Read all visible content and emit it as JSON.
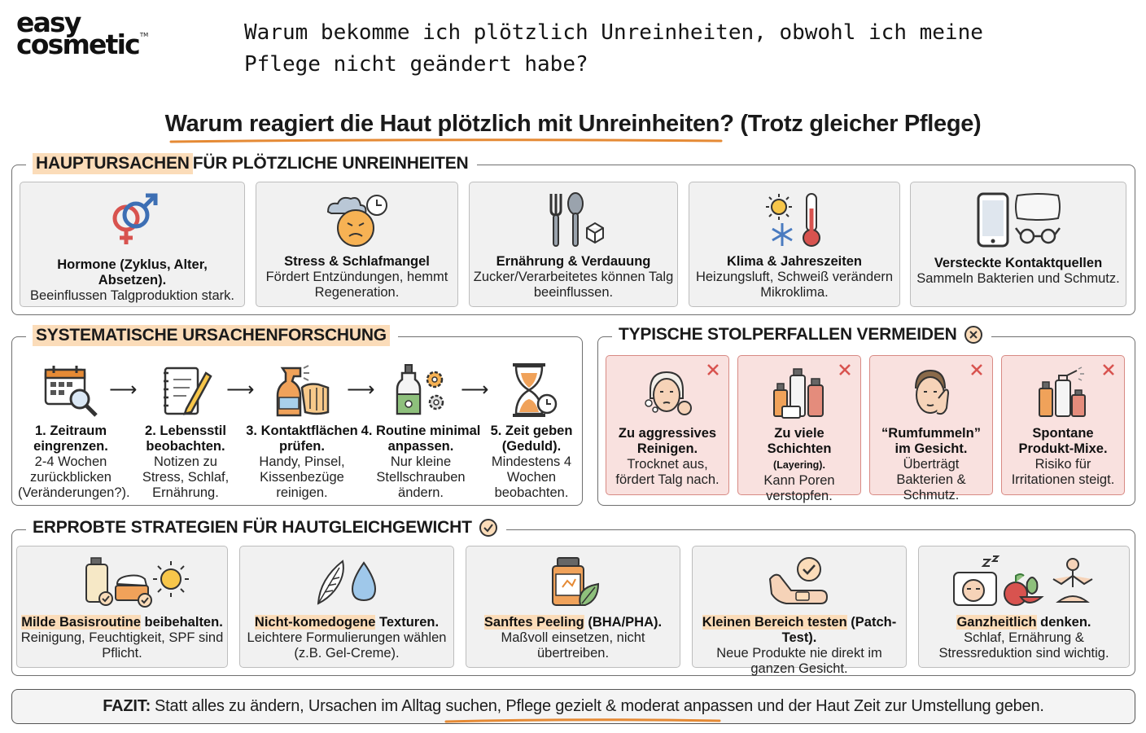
{
  "logo": {
    "line1": "easy",
    "line2": "cosmetic",
    "tm": "TM"
  },
  "title": "Warum bekomme ich plötzlich Unreinheiten, obwohl ich meine Pflege nicht geändert habe?",
  "subtitle": "Warum reagiert die Haut plötzlich mit Unreinheiten? (Trotz gleicher Pflege)",
  "colors": {
    "highlight": "#fbdcb9",
    "accent": "#e58a35",
    "red_card": "#f9e1df",
    "red_border": "#d88a84",
    "card_bg": "#f1f1f1"
  },
  "causes": {
    "label_hl": "HAUPTURSACHEN",
    "label_rest": " FÜR PLÖTZLICHE UNREINHEITEN",
    "items": [
      {
        "icon": "gender-symbols-icon",
        "title": "Hormone (Zyklus, Alter, Absetzen).",
        "text": "Beeinflussen Talgproduktion stark."
      },
      {
        "icon": "stressed-face-clock-icon",
        "title": "Stress & Schlafmangel",
        "text": "Fördert Entzündungen, hemmt Regeneration."
      },
      {
        "icon": "fork-spoon-sugar-icon",
        "title": "Ernährung & Verdauung",
        "text": "Zucker/Verarbeitetes können Talg beeinflussen."
      },
      {
        "icon": "sun-snowflake-thermometer-icon",
        "title": "Klima & Jahreszeiten",
        "text": "Heizungsluft, Schweiß verändern Mikroklima."
      },
      {
        "icon": "phone-pillow-glasses-icon",
        "title": "Versteckte Kontaktquellen",
        "text": "Sammeln Bakterien und Schmutz."
      }
    ]
  },
  "research": {
    "label": "SYSTEMATISCHE URSACHENFORSCHUNG",
    "arrow": "⟶",
    "steps": [
      {
        "icon": "calendar-magnifier-icon",
        "title": "1. Zeitraum eingrenzen.",
        "text": "2-4 Wochen zurückblicken (Veränderungen?)."
      },
      {
        "icon": "notepad-pencil-icon",
        "title": "2. Lebensstil beobachten.",
        "text": "Notizen zu Stress, Schlaf, Ernährung."
      },
      {
        "icon": "spray-cloth-icon",
        "title": "3. Kontaktflächen prüfen.",
        "text": "Handy, Pinsel, Kissenbezüge reinigen."
      },
      {
        "icon": "dropper-gears-icon",
        "title": "4. Routine minimal anpassen.",
        "text": "Nur kleine Stellschrauben ändern."
      },
      {
        "icon": "hourglass-clock-icon",
        "title": "5. Zeit geben (Geduld).",
        "text": "Mindestens 4 Wochen beobachten."
      }
    ]
  },
  "pitfalls": {
    "label": "TYPISCHE STOLPERFALLEN VERMEIDEN",
    "items": [
      {
        "icon": "face-scrubbing-icon",
        "title": "Zu aggressives Reinigen.",
        "small": "",
        "text": "Trocknet aus, fördert Talg nach."
      },
      {
        "icon": "many-bottles-icon",
        "title": "Zu viele Schichten",
        "small": "(Layering).",
        "text": "Kann Poren verstopfen."
      },
      {
        "icon": "face-touching-icon",
        "title": "“Rumfummeln” im Gesicht.",
        "small": "",
        "text": "Überträgt Bakterien & Schmutz."
      },
      {
        "icon": "product-mix-icon",
        "title": "Spontane Produkt-Mixe.",
        "small": "",
        "text": "Risiko für Irritationen steigt."
      }
    ]
  },
  "strategies": {
    "label": "ERPROBTE STRATEGIEN FÜR HAUTGLEICHGEWICHT",
    "items": [
      {
        "icon": "bottle-cream-sun-icon",
        "hl": "Milde Basisroutine",
        "rest": " beibehalten.",
        "text": "Reinigung, Feuchtigkeit, SPF sind Pflicht."
      },
      {
        "icon": "feather-drop-icon",
        "hl": "Nicht-komedogene",
        "rest": " Texturen.",
        "text": "Leichtere Formulierungen wählen (z.B. Gel-Creme)."
      },
      {
        "icon": "jar-leaf-icon",
        "hl": "Sanftes Peeling",
        "rest": " (BHA/PHA).",
        "text": "Maßvoll einsetzen, nicht übertreiben."
      },
      {
        "icon": "arm-patch-test-icon",
        "hl": "Kleinen Bereich testen",
        "rest": " (Patch-Test).",
        "text": "Neue Produkte nie direkt im ganzen Gesicht."
      },
      {
        "icon": "sleep-fruit-yoga-icon",
        "hl": "Ganzheitlich",
        "rest": " denken.",
        "text": "Schlaf, Ernährung & Stressreduktion sind wichtig."
      }
    ]
  },
  "fazit": {
    "label": "FAZIT:",
    "text": "Statt alles zu ändern, Ursachen im Alltag suchen, Pflege gezielt & moderat anpassen und der Haut Zeit zur Umstellung geben."
  }
}
